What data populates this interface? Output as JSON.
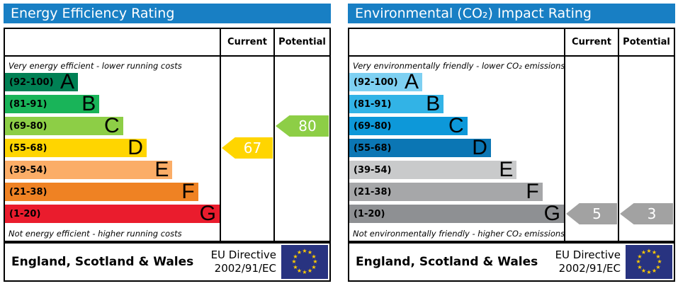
{
  "colors": {
    "header_bg": "#187fc4",
    "border": "#000000",
    "arrow_text": "#ffffff",
    "eu_flag_bg": "#283380",
    "eu_flag_star": "#ffcc00"
  },
  "panels": [
    {
      "title": "Energy Efficiency Rating",
      "columns": {
        "current": "Current",
        "potential": "Potential"
      },
      "caption_top": "Very energy efficient - lower running costs",
      "caption_bottom": "Not energy efficient - higher running costs",
      "bands": [
        {
          "letter": "A",
          "range": "(92-100)",
          "color": "#008054",
          "width_pct": 34
        },
        {
          "letter": "B",
          "range": "(81-91)",
          "color": "#19b459",
          "width_pct": 44
        },
        {
          "letter": "C",
          "range": "(69-80)",
          "color": "#8dce46",
          "width_pct": 55
        },
        {
          "letter": "D",
          "range": "(55-68)",
          "color": "#ffd500",
          "width_pct": 66
        },
        {
          "letter": "E",
          "range": "(39-54)",
          "color": "#fbad67",
          "width_pct": 78
        },
        {
          "letter": "F",
          "range": "(21-38)",
          "color": "#ef8223",
          "width_pct": 90
        },
        {
          "letter": "G",
          "range": "(1-20)",
          "color": "#ea1c2d",
          "width_pct": 100
        }
      ],
      "arrows": {
        "current": {
          "value": "67",
          "color": "#ffd500",
          "band_index": 3
        },
        "potential": {
          "value": "80",
          "color": "#8dce46",
          "band_index": 2
        }
      },
      "footer": {
        "region": "England, Scotland & Wales",
        "directive_line1": "EU Directive",
        "directive_line2": "2002/91/EC"
      }
    },
    {
      "title": "Environmental (CO₂) Impact Rating",
      "columns": {
        "current": "Current",
        "potential": "Potential"
      },
      "caption_top": "Very environmentally friendly - lower CO₂ emissions",
      "caption_bottom": "Not environmentally friendly - higher CO₂ emissions",
      "bands": [
        {
          "letter": "A",
          "range": "(92-100)",
          "color": "#7ed0f2",
          "width_pct": 34
        },
        {
          "letter": "B",
          "range": "(81-91)",
          "color": "#32b3e6",
          "width_pct": 44
        },
        {
          "letter": "C",
          "range": "(69-80)",
          "color": "#0d98d9",
          "width_pct": 55
        },
        {
          "letter": "D",
          "range": "(55-68)",
          "color": "#0b76b4",
          "width_pct": 66
        },
        {
          "letter": "E",
          "range": "(39-54)",
          "color": "#c9cacb",
          "width_pct": 78
        },
        {
          "letter": "F",
          "range": "(21-38)",
          "color": "#a6a7a9",
          "width_pct": 90
        },
        {
          "letter": "G",
          "range": "(1-20)",
          "color": "#8e9093",
          "width_pct": 100
        }
      ],
      "arrows": {
        "current": {
          "value": "5",
          "color": "#a2a2a2",
          "band_index": 6
        },
        "potential": {
          "value": "3",
          "color": "#a2a2a2",
          "band_index": 6
        }
      },
      "footer": {
        "region": "England, Scotland & Wales",
        "directive_line1": "EU Directive",
        "directive_line2": "2002/91/EC"
      }
    }
  ],
  "chart_data": [
    {
      "type": "bar",
      "title": "Energy Efficiency Rating",
      "categories": [
        "A (92-100)",
        "B (81-91)",
        "C (69-80)",
        "D (55-68)",
        "E (39-54)",
        "F (21-38)",
        "G (1-20)"
      ],
      "bar_lengths_pct": [
        34,
        44,
        55,
        66,
        78,
        90,
        100
      ],
      "current": 67,
      "current_band": "D",
      "potential": 80,
      "potential_band": "C",
      "annotation_top": "Very energy efficient - lower running costs",
      "annotation_bottom": "Not energy efficient - higher running costs",
      "legend_position": "columns-right",
      "footnote": "England, Scotland & Wales — EU Directive 2002/91/EC"
    },
    {
      "type": "bar",
      "title": "Environmental (CO₂) Impact Rating",
      "categories": [
        "A (92-100)",
        "B (81-91)",
        "C (69-80)",
        "D (55-68)",
        "E (39-54)",
        "F (21-38)",
        "G (1-20)"
      ],
      "bar_lengths_pct": [
        34,
        44,
        55,
        66,
        78,
        90,
        100
      ],
      "current": 5,
      "current_band": "G",
      "potential": 3,
      "potential_band": "G",
      "annotation_top": "Very environmentally friendly - lower CO₂ emissions",
      "annotation_bottom": "Not environmentally friendly - higher CO₂ emissions",
      "legend_position": "columns-right",
      "footnote": "England, Scotland & Wales — EU Directive 2002/91/EC"
    }
  ]
}
